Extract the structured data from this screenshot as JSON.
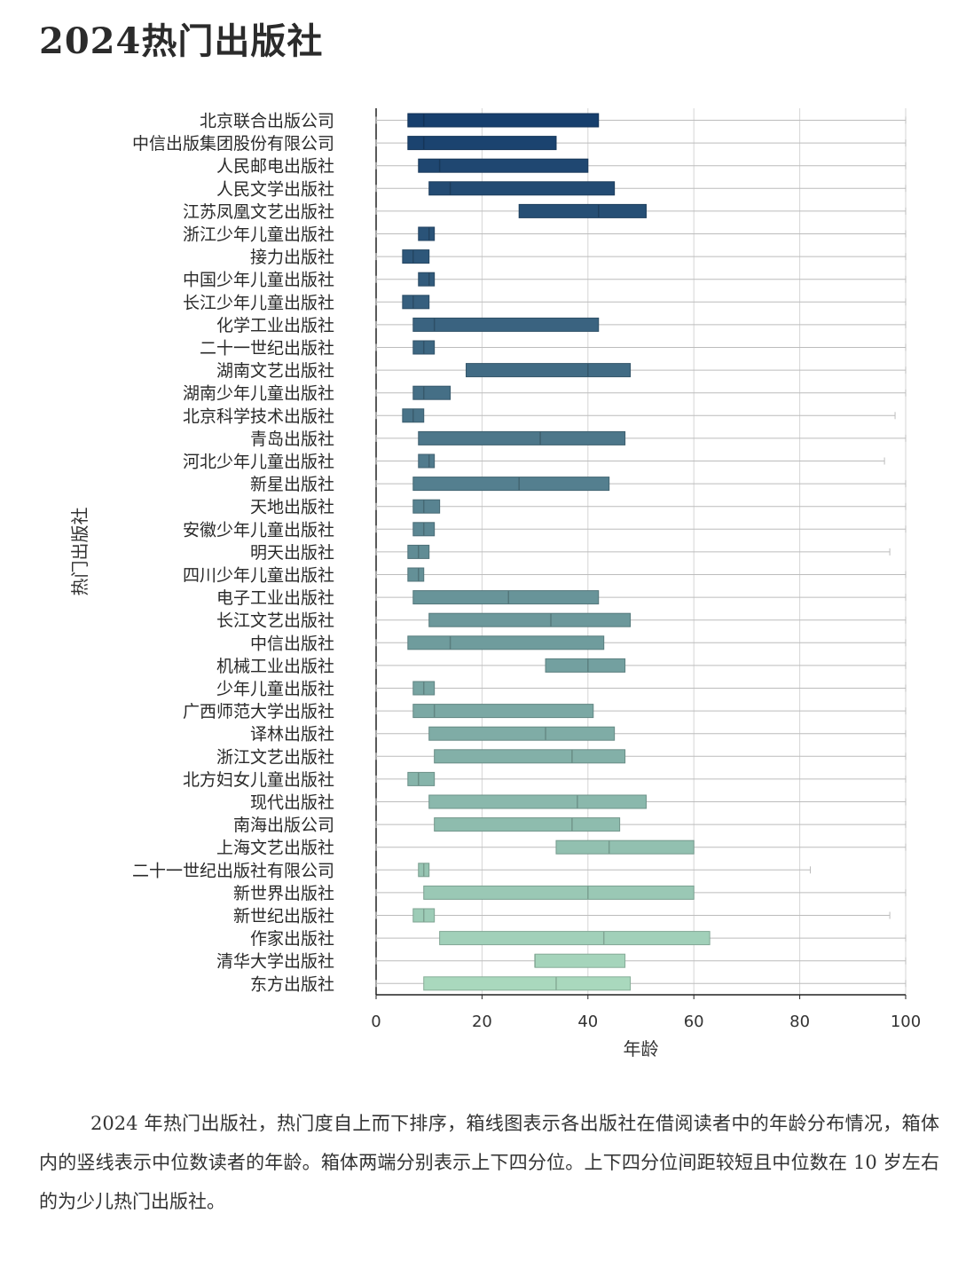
{
  "page": {
    "title": "2024热门出版社",
    "caption": "2024 年热门出版社，热门度自上而下排序，箱线图表示各出版社在借阅读者中的年龄分布情况，箱体内的竖线表示中位数读者的年龄。箱体两端分别表示上下四分位。上下四分位间距较短且中位数在 10 岁左右的为少儿热门出版社。"
  },
  "chart_data": {
    "type": "box",
    "orientation": "horizontal",
    "xlabel": "年龄",
    "ylabel": "热门出版社",
    "xlim": [
      0,
      100
    ],
    "xticks": [
      0,
      20,
      40,
      60,
      80,
      100
    ],
    "grid": "vertical",
    "colors": {
      "first": "#173f6d",
      "last": "#a9d8bd"
    },
    "categories": [
      "北京联合出版公司",
      "中信出版集团股份有限公司",
      "人民邮电出版社",
      "人民文学出版社",
      "江苏凤凰文艺出版社",
      "浙江少年儿童出版社",
      "接力出版社",
      "中国少年儿童出版社",
      "长江少年儿童出版社",
      "化学工业出版社",
      "二十一世纪出版社",
      "湖南文艺出版社",
      "湖南少年儿童出版社",
      "北京科学技术出版社",
      "青岛出版社",
      "河北少年儿童出版社",
      "新星出版社",
      "天地出版社",
      "安徽少年儿童出版社",
      "明天出版社",
      "四川少年儿童出版社",
      "电子工业出版社",
      "长江文艺出版社",
      "中信出版社",
      "机械工业出版社",
      "少年儿童出版社",
      "广西师范大学出版社",
      "译林出版社",
      "浙江文艺出版社",
      "北方妇女儿童出版社",
      "现代出版社",
      "南海出版公司",
      "上海文艺出版社",
      "二十一世纪出版社有限公司",
      "新世界出版社",
      "新世纪出版社",
      "作家出版社",
      "清华大学出版社",
      "东方出版社"
    ],
    "whisker_low": [
      0,
      0,
      0,
      0,
      0,
      0,
      0,
      0,
      0,
      0,
      0,
      0,
      0,
      0,
      0,
      0,
      0,
      0,
      0,
      0,
      0,
      0,
      0,
      0,
      0,
      0,
      0,
      0,
      0,
      0,
      0,
      0,
      0,
      0,
      0,
      0,
      0,
      0,
      0
    ],
    "q1": [
      6,
      6,
      8,
      10,
      27,
      8,
      5,
      8,
      5,
      7,
      7,
      17,
      7,
      5,
      8,
      8,
      7,
      7,
      7,
      6,
      6,
      7,
      10,
      6,
      32,
      7,
      7,
      10,
      11,
      6,
      10,
      11,
      34,
      8,
      9,
      7,
      12,
      30,
      9
    ],
    "median": [
      9,
      9,
      12,
      14,
      42,
      10,
      7,
      10,
      7,
      11,
      9,
      40,
      9,
      7,
      31,
      10,
      27,
      9,
      9,
      8,
      8,
      25,
      33,
      14,
      40,
      9,
      11,
      32,
      37,
      8,
      38,
      37,
      44,
      9,
      40,
      9,
      43,
      30,
      34
    ],
    "q3": [
      42,
      34,
      40,
      45,
      51,
      11,
      10,
      11,
      10,
      42,
      11,
      48,
      14,
      9,
      47,
      11,
      44,
      12,
      11,
      10,
      9,
      42,
      48,
      43,
      47,
      11,
      41,
      45,
      47,
      11,
      51,
      46,
      60,
      10,
      60,
      11,
      63,
      47,
      48
    ],
    "whisker_high": [
      100,
      100,
      100,
      100,
      100,
      100,
      100,
      100,
      100,
      100,
      100,
      100,
      100,
      98,
      100,
      96,
      100,
      100,
      100,
      97,
      100,
      100,
      100,
      100,
      100,
      100,
      100,
      100,
      100,
      100,
      100,
      100,
      100,
      82,
      100,
      97,
      100,
      100,
      100
    ]
  }
}
